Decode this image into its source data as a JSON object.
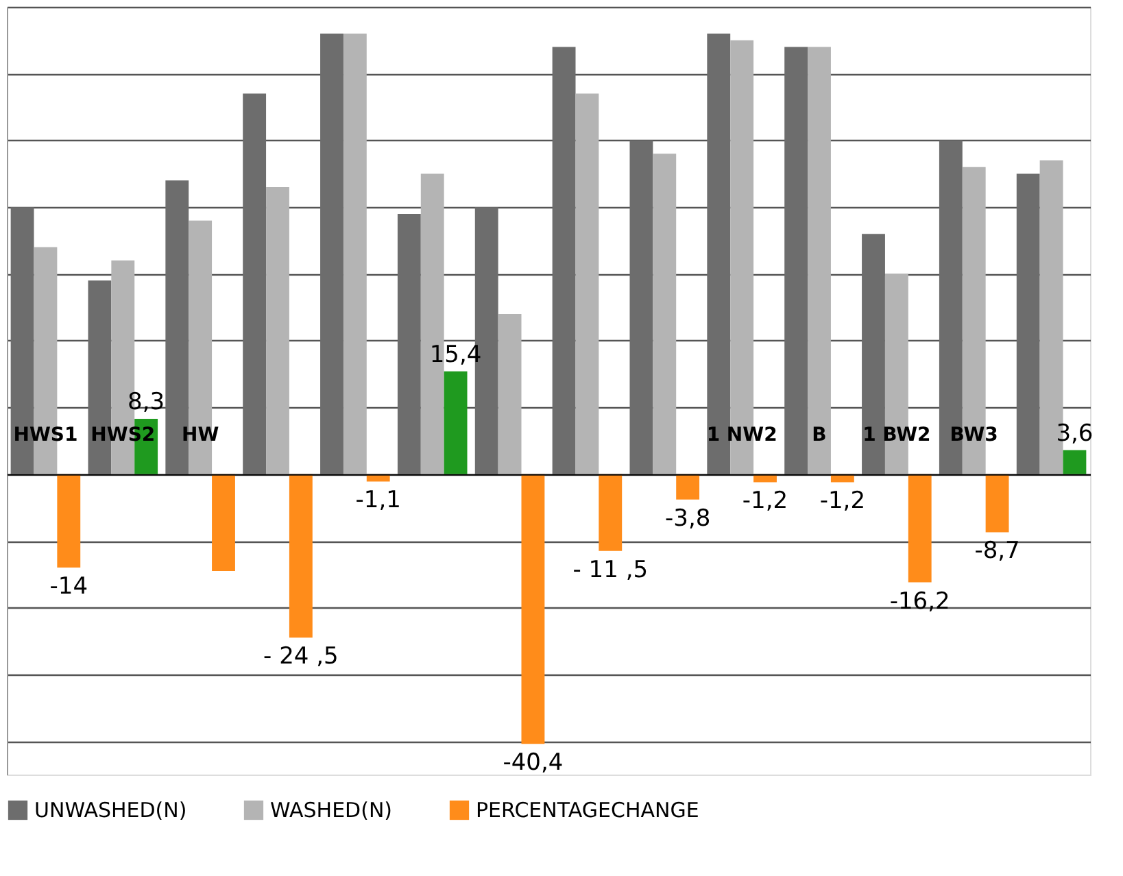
{
  "chart_data": {
    "type": "bar",
    "grid": "y",
    "legend": "bottom",
    "tick_labels": "x",
    "ylim": [
      -45,
      70
    ],
    "yticks": [
      {
        "value": -40,
        "label": null
      },
      {
        "value": -30,
        "label": null
      },
      {
        "value": -20,
        "label": null
      },
      {
        "value": -10,
        "label": null
      },
      {
        "value": 0,
        "label": null
      },
      {
        "value": 10,
        "label": null
      },
      {
        "value": 20,
        "label": null
      },
      {
        "value": 30,
        "label": null
      },
      {
        "value": 40,
        "label": null
      },
      {
        "value": 50,
        "label": null
      },
      {
        "value": 60,
        "label": null
      },
      {
        "value": 70,
        "label": null
      }
    ],
    "categories": [
      "HWS1",
      "HWS2",
      "HW",
      null,
      null,
      null,
      null,
      null,
      null,
      "1 NW2",
      "B",
      "1 BW2",
      "BW3",
      null
    ],
    "series": [
      {
        "name": "UNWASHED(N)",
        "color": "#6d6d6d",
        "values": [
          40,
          29,
          44,
          57,
          66,
          39,
          40,
          64,
          50,
          66,
          64,
          36,
          50,
          45
        ]
      },
      {
        "name": "WASHED(N)",
        "color": "#b4b4b4",
        "values": [
          34,
          32,
          38,
          43,
          66,
          45,
          24,
          57,
          48,
          65,
          64,
          30,
          46,
          47
        ]
      },
      {
        "name": "PERCENTAGECHANGE",
        "color": "#ff8c1a",
        "colors": [
          "#ff8c1a",
          "#1f9a1f",
          "#ff8c1a",
          "#ff8c1a",
          "#ff8c1a",
          "#1f9a1f",
          "#ff8c1a",
          "#ff8c1a",
          "#ff8c1a",
          "#ff8c1a",
          "#ff8c1a",
          "#ff8c1a",
          "#ff8c1a",
          "#1f9a1f"
        ],
        "values": [
          -14,
          8.3,
          -14.5,
          -24.5,
          -1.1,
          15.4,
          -40.4,
          -11.5,
          -3.8,
          -1.2,
          -1.2,
          -16.2,
          -8.7,
          3.6
        ],
        "value_labels": [
          "-14",
          "8,3",
          null,
          "- 24 ,5",
          "-1,1",
          "15,4",
          "-40,4",
          "- 11 ,5",
          "-3,8",
          "-1,2",
          "-1,2",
          "-16,2",
          "-8,7",
          "3,6"
        ]
      }
    ]
  }
}
